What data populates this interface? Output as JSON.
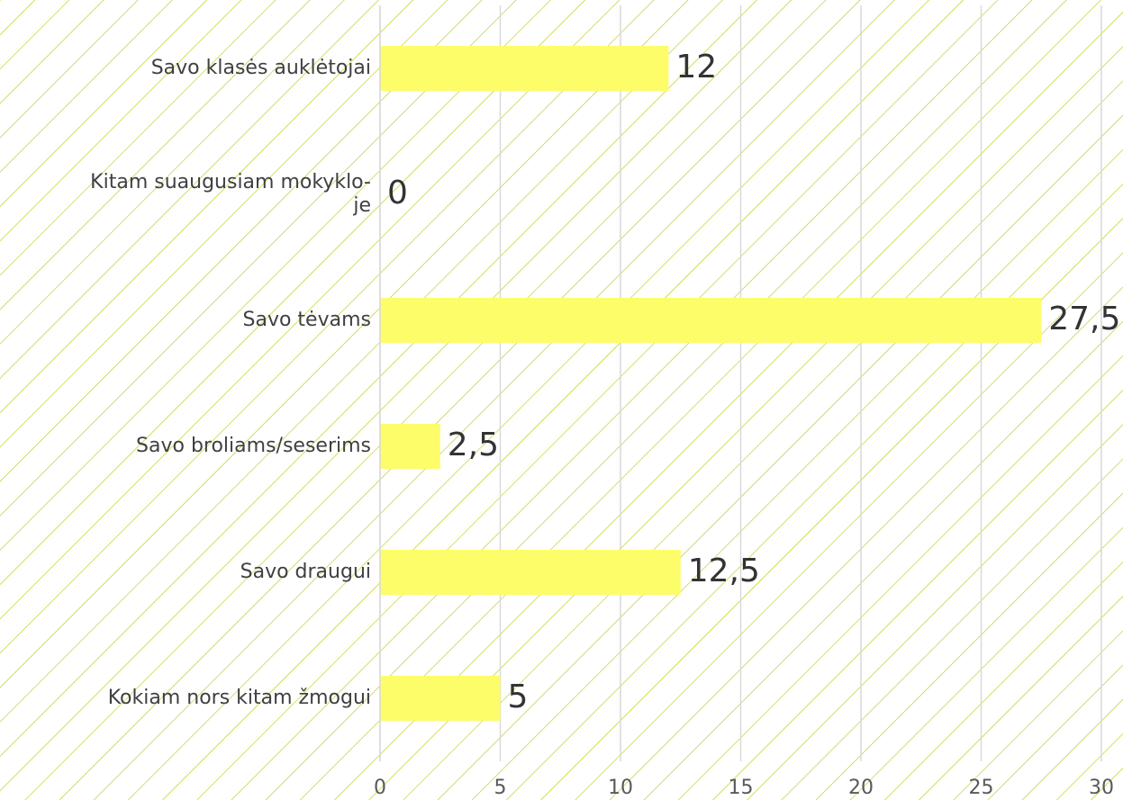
{
  "chart_data": {
    "type": "bar",
    "orientation": "horizontal",
    "categories": [
      "Savo klasės auklėtojai",
      "Kitam suaugusiam mokyklo-\nje",
      "Savo tėvams",
      "Savo broliams/seserims",
      "Savo draugui",
      "Kokiam nors kitam žmogui"
    ],
    "values": [
      12,
      0,
      27.5,
      2.5,
      12.5,
      5
    ],
    "value_labels": [
      "12",
      "0",
      "27,5",
      "2,5",
      "12,5",
      "5"
    ],
    "color": "#fdfd6a",
    "xlim": [
      0,
      30
    ],
    "xticks": [
      0,
      5,
      10,
      15,
      20,
      25,
      30
    ],
    "grid": true
  }
}
